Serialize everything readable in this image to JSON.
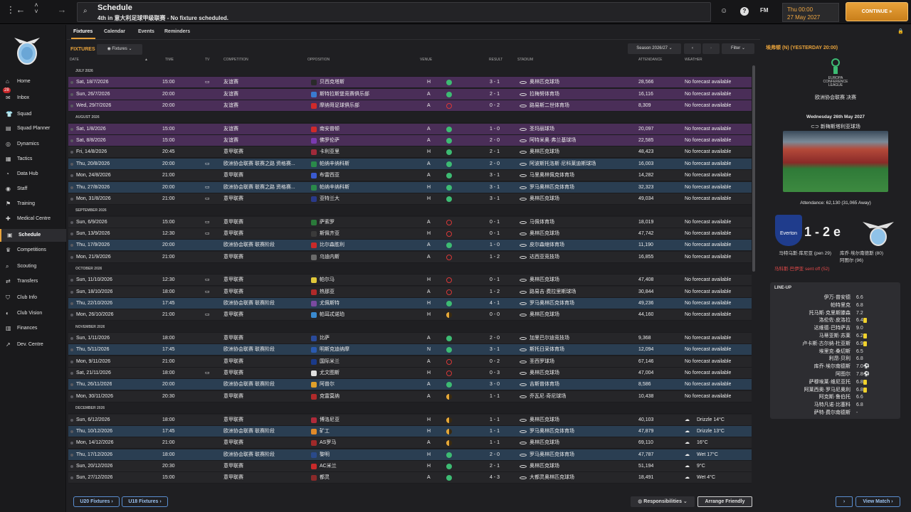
{
  "topbar": {
    "title": "Schedule",
    "subtitle": "4th in 意大利足球甲级联赛 - No fixture scheduled.",
    "date_time": "Thu 00:00",
    "date": "27 May 2027",
    "continue_label": "CONTINUE",
    "fm_label": "FM"
  },
  "sidebar": {
    "items": [
      {
        "label": "Home",
        "icon": "⌂"
      },
      {
        "label": "Inbox",
        "icon": "✉",
        "badge": "28"
      },
      {
        "label": "Squad",
        "icon": "👕"
      },
      {
        "label": "Squad Planner",
        "icon": "▤"
      },
      {
        "label": "Dynamics",
        "icon": "◎"
      },
      {
        "label": "Tactics",
        "icon": "▦"
      },
      {
        "label": "Data Hub",
        "icon": "◔"
      },
      {
        "label": "Staff",
        "icon": "◉"
      },
      {
        "label": "Training",
        "icon": "⚑"
      },
      {
        "label": "Medical Centre",
        "icon": "✚"
      },
      {
        "label": "Schedule",
        "icon": "▣"
      },
      {
        "label": "Competitions",
        "icon": "♛"
      },
      {
        "label": "Scouting",
        "icon": "⌕"
      },
      {
        "label": "Transfers",
        "icon": "⇄"
      },
      {
        "label": "Club Info",
        "icon": "⛉"
      },
      {
        "label": "Club Vision",
        "icon": "◐"
      },
      {
        "label": "Finances",
        "icon": "▥"
      },
      {
        "label": "Dev. Centre",
        "icon": "↗"
      }
    ]
  },
  "tabs": [
    "Fixtures",
    "Calendar",
    "Events",
    "Reminders"
  ],
  "fixtures_label": "FIXTURES",
  "fixtures_dropdown": "Fixtures",
  "season_label": "Season 2026/27",
  "filter_label": "Filter",
  "columns": {
    "date": "DATE",
    "time": "TIME",
    "tv": "TV",
    "competition": "COMPETITION",
    "opposition": "OPPOSITION",
    "venue": "VENUE",
    "result": "RESULT",
    "stadium": "STADIUM",
    "attendance": "ATTENDANCE",
    "weather": "WEATHER"
  },
  "rows": [
    {
      "month": "JULY 2026"
    },
    {
      "date": "Sat, 18/7/2026",
      "time": "15:00",
      "tv": true,
      "comp": "友谊赛",
      "opp": "贝西克塔斯",
      "venue": "H",
      "out": "win",
      "result": "3 - 1",
      "stadium": "奥林匹克球场",
      "att": "28,566",
      "weather": "No forecast available",
      "style": "purple",
      "crest": "#2a2a2a"
    },
    {
      "date": "Sun, 26/7/2026",
      "time": "20:00",
      "tv": false,
      "comp": "友谊赛",
      "opp": "斯特拉斯堡竞赛俱乐部",
      "venue": "A",
      "out": "win",
      "result": "2 - 1",
      "stadium": "拉梅努体育场",
      "att": "16,116",
      "weather": "No forecast available",
      "style": "purple",
      "crest": "#3a7ad0"
    },
    {
      "date": "Wed, 29/7/2026",
      "time": "20:00",
      "tv": false,
      "comp": "友谊赛",
      "opp": "摩纳哥足球俱乐部",
      "venue": "A",
      "out": "loss",
      "result": "0 - 2",
      "stadium": "路易斯二世体育场",
      "att": "8,309",
      "weather": "No forecast available",
      "style": "purple",
      "crest": "#d02a2a"
    },
    {
      "month": "AUGUST 2026"
    },
    {
      "date": "Sat, 1/8/2026",
      "time": "15:00",
      "tv": false,
      "comp": "友谊赛",
      "opp": "南安普顿",
      "venue": "A",
      "out": "win",
      "result": "1 - 0",
      "stadium": "圣玛丽球场",
      "att": "20,097",
      "weather": "No forecast available",
      "style": "purple",
      "crest": "#d02a2a"
    },
    {
      "date": "Sat, 8/8/2026",
      "time": "15:00",
      "tv": false,
      "comp": "友谊赛",
      "opp": "佛罗伦萨",
      "venue": "A",
      "out": "win",
      "result": "2 - 0",
      "stadium": "阿特米奥·弗兰基球场",
      "att": "22,585",
      "weather": "No forecast available",
      "style": "purple",
      "crest": "#7a3ab0"
    },
    {
      "date": "Fri, 14/8/2026",
      "time": "20:45",
      "tv": false,
      "comp": "意甲联赛",
      "opp": "卡利亚里",
      "venue": "H",
      "out": "win",
      "result": "2 - 1",
      "stadium": "奥林匹克球场",
      "att": "48,423",
      "weather": "No forecast available",
      "style": "plain",
      "crest": "#a02a3a"
    },
    {
      "date": "Thu, 20/8/2026",
      "time": "20:00",
      "tv": true,
      "comp": "欧洲协会联赛 联赛之路 资格赛...",
      "opp": "帕纳辛纳科斯",
      "venue": "A",
      "out": "win",
      "result": "2 - 0",
      "stadium": "阿波斯托洛斯·尼科莱迪斯球场",
      "att": "16,003",
      "weather": "No forecast available",
      "style": "blue",
      "crest": "#2a8a4a"
    },
    {
      "date": "Mon, 24/8/2026",
      "time": "21:00",
      "tv": false,
      "comp": "意甲联赛",
      "opp": "布雷西亚",
      "venue": "A",
      "out": "win",
      "result": "3 - 1",
      "stadium": "马里奥林佩克体育场",
      "att": "14,282",
      "weather": "No forecast available",
      "style": "plain",
      "crest": "#3a5ad0"
    },
    {
      "date": "Thu, 27/8/2026",
      "time": "20:00",
      "tv": true,
      "comp": "欧洲协会联赛 联赛之路 资格赛...",
      "opp": "帕纳辛纳科斯",
      "venue": "H",
      "out": "win",
      "result": "3 - 1",
      "stadium": "罗马奥林匹克体育场",
      "att": "32,323",
      "weather": "No forecast available",
      "style": "blue",
      "crest": "#2a8a4a"
    },
    {
      "date": "Mon, 31/8/2026",
      "time": "21:00",
      "tv": true,
      "comp": "意甲联赛",
      "opp": "亚特兰大",
      "venue": "H",
      "out": "win",
      "result": "3 - 1",
      "stadium": "奥林匹克球场",
      "att": "49,034",
      "weather": "No forecast available",
      "style": "plain",
      "crest": "#2a3a8a"
    },
    {
      "month": "SEPTEMBER 2026"
    },
    {
      "date": "Sun, 6/9/2026",
      "time": "15:00",
      "tv": true,
      "comp": "意甲联赛",
      "opp": "萨索罗",
      "venue": "A",
      "out": "loss",
      "result": "0 - 1",
      "stadium": "马佩体育场",
      "att": "18,019",
      "weather": "No forecast available",
      "style": "plain",
      "crest": "#2a7a3a"
    },
    {
      "date": "Sun, 13/9/2026",
      "time": "12:30",
      "tv": true,
      "comp": "意甲联赛",
      "opp": "斯佩齐亚",
      "venue": "H",
      "out": "loss",
      "result": "0 - 1",
      "stadium": "奥林匹克球场",
      "att": "47,742",
      "weather": "No forecast available",
      "style": "plain",
      "crest": "#3a3a3a"
    },
    {
      "date": "Thu, 17/9/2026",
      "time": "20:00",
      "tv": false,
      "comp": "欧洲协会联赛 联赛阶段",
      "opp": "比尔森胜利",
      "venue": "A",
      "out": "win",
      "result": "1 - 0",
      "stadium": "皮尔森缩体育场",
      "att": "11,190",
      "weather": "No forecast available",
      "style": "blue",
      "crest": "#c82a2a"
    },
    {
      "date": "Mon, 21/9/2026",
      "time": "21:00",
      "tv": false,
      "comp": "意甲联赛",
      "opp": "乌迪内斯",
      "venue": "A",
      "out": "loss",
      "result": "1 - 2",
      "stadium": "达西亚竞技场",
      "att": "16,855",
      "weather": "No forecast available",
      "style": "plain",
      "crest": "#6a6a6a"
    },
    {
      "month": "OCTOBER 2026"
    },
    {
      "date": "Sun, 11/10/2026",
      "time": "12:30",
      "tv": true,
      "comp": "意甲联赛",
      "opp": "帕尔马",
      "venue": "H",
      "out": "loss",
      "result": "0 - 1",
      "stadium": "奥林匹克球场",
      "att": "47,408",
      "weather": "No forecast available",
      "style": "plain",
      "crest": "#e0c83a"
    },
    {
      "date": "Sun, 18/10/2026",
      "time": "18:00",
      "tv": true,
      "comp": "意甲联赛",
      "opp": "热那亚",
      "venue": "A",
      "out": "loss",
      "result": "1 - 2",
      "stadium": "路易吉·费拉里斯球场",
      "att": "30,844",
      "weather": "No forecast available",
      "style": "plain",
      "crest": "#b02a2a"
    },
    {
      "date": "Thu, 22/10/2026",
      "time": "17:45",
      "tv": false,
      "comp": "欧洲协会联赛 联赛阶段",
      "opp": "尤佩斯特",
      "venue": "H",
      "out": "win",
      "result": "4 - 1",
      "stadium": "罗马奥林匹克体育场",
      "att": "49,236",
      "weather": "No forecast available",
      "style": "blue",
      "crest": "#7a4aa0"
    },
    {
      "date": "Mon, 26/10/2026",
      "time": "21:00",
      "tv": true,
      "comp": "意甲联赛",
      "opp": "帕耳忒诺珀",
      "venue": "H",
      "out": "draw",
      "result": "0 - 0",
      "stadium": "奥林匹克球场",
      "att": "44,160",
      "weather": "No forecast available",
      "style": "plain",
      "crest": "#3a8ad0"
    },
    {
      "month": "NOVEMBER 2026"
    },
    {
      "date": "Sun, 1/11/2026",
      "time": "18:00",
      "tv": false,
      "comp": "意甲联赛",
      "opp": "比萨",
      "venue": "A",
      "out": "win",
      "result": "2 - 0",
      "stadium": "加里巴尔迪竞技场",
      "att": "9,368",
      "weather": "No forecast available",
      "style": "plain",
      "crest": "#2a4a9a"
    },
    {
      "date": "Thu, 5/11/2026",
      "time": "17:45",
      "tv": false,
      "comp": "欧洲协会联赛 联赛阶段",
      "opp": "明斯克迪纳摩",
      "venue": "N",
      "out": "win",
      "result": "3 - 1",
      "stadium": "斯托日采体育场",
      "att": "12,094",
      "weather": "No forecast available",
      "style": "blue",
      "crest": "#2a5ab0"
    },
    {
      "date": "Mon, 9/11/2026",
      "time": "21:00",
      "tv": false,
      "comp": "意甲联赛",
      "opp": "国际米兰",
      "venue": "A",
      "out": "loss",
      "result": "0 - 2",
      "stadium": "圣西罗球场",
      "att": "67,146",
      "weather": "No forecast available",
      "style": "plain",
      "crest": "#1a3a8a"
    },
    {
      "date": "Sat, 21/11/2026",
      "time": "18:00",
      "tv": true,
      "comp": "意甲联赛",
      "opp": "尤文图斯",
      "venue": "H",
      "out": "loss",
      "result": "0 - 3",
      "stadium": "奥林匹克球场",
      "att": "47,004",
      "weather": "No forecast available",
      "style": "plain",
      "crest": "#e0e0e0"
    },
    {
      "date": "Thu, 26/11/2026",
      "time": "20:00",
      "tv": false,
      "comp": "欧洲协会联赛 联赛阶段",
      "opp": "阿普尔",
      "venue": "A",
      "out": "win",
      "result": "3 - 0",
      "stadium": "吉斯普体育场",
      "att": "8,586",
      "weather": "No forecast available",
      "style": "blue",
      "crest": "#e0a02a"
    },
    {
      "date": "Mon, 30/11/2026",
      "time": "20:30",
      "tv": false,
      "comp": "意甲联赛",
      "opp": "克雷莫纳",
      "venue": "A",
      "out": "draw",
      "result": "1 - 1",
      "stadium": "乔瓦尼·奇尼球场",
      "att": "10,438",
      "weather": "No forecast available",
      "style": "plain",
      "crest": "#b02a2a"
    },
    {
      "month": "DECEMBER 2026"
    },
    {
      "date": "Sun, 6/12/2026",
      "time": "18:00",
      "tv": false,
      "comp": "意甲联赛",
      "opp": "博洛尼亚",
      "venue": "H",
      "out": "draw",
      "result": "1 - 1",
      "stadium": "奥林匹克球场",
      "att": "40,103",
      "weather": "Drizzle 14°C",
      "style": "plain",
      "crest": "#b02a3a"
    },
    {
      "date": "Thu, 10/12/2026",
      "time": "17:45",
      "tv": false,
      "comp": "欧洲协会联赛 联赛阶段",
      "opp": "矿工",
      "venue": "H",
      "out": "draw",
      "result": "1 - 1",
      "stadium": "罗马奥林匹克体育场",
      "att": "47,879",
      "weather": "Drizzle 13°C",
      "style": "blue",
      "crest": "#e08a2a"
    },
    {
      "date": "Mon, 14/12/2026",
      "time": "21:00",
      "tv": false,
      "comp": "意甲联赛",
      "opp": "AS罗马",
      "venue": "A",
      "out": "draw",
      "result": "1 - 1",
      "stadium": "奥林匹克球场",
      "att": "69,110",
      "weather": "16°C",
      "style": "plain",
      "crest": "#a02a2a"
    },
    {
      "date": "Thu, 17/12/2026",
      "time": "18:00",
      "tv": false,
      "comp": "欧洲协会联赛 联赛阶段",
      "opp": "黎明",
      "venue": "H",
      "out": "win",
      "result": "2 - 0",
      "stadium": "罗马奥林匹克体育场",
      "att": "47,787",
      "weather": "Wet 17°C",
      "style": "blue",
      "crest": "#2a4a8a"
    },
    {
      "date": "Sun, 20/12/2026",
      "time": "20:30",
      "tv": false,
      "comp": "意甲联赛",
      "opp": "AC米兰",
      "venue": "H",
      "out": "win",
      "result": "2 - 1",
      "stadium": "奥林匹克球场",
      "att": "51,194",
      "weather": "9°C",
      "style": "plain",
      "crest": "#c82a2a"
    },
    {
      "date": "Sun, 27/12/2026",
      "time": "15:00",
      "tv": false,
      "comp": "意甲联赛",
      "opp": "都灵",
      "venue": "A",
      "out": "win",
      "result": "4 - 3",
      "stadium": "大都灵奥林匹克球场",
      "att": "18,491",
      "weather": "Wet 4°C",
      "style": "plain",
      "crest": "#8a2a2a"
    }
  ],
  "bottom": {
    "u20": "U20 Fixtures",
    "u18": "U18 Fixtures",
    "responsibilities": "Responsibilities",
    "arrange": "Arrange Friendly",
    "view_match": "View Match"
  },
  "panel": {
    "header": "埃弗顿 (N) (YESTERDAY 20:00)",
    "comp_logo_l1": "EUROPA",
    "comp_logo_l2": "CONFERENCE",
    "comp_logo_l3": "LEAGUE",
    "comp": "欧洲协会联赛 决赛",
    "date": "Wednesday 26th May 2027",
    "stadium": "新梅斯塔利亚球场",
    "attendance": "Attendance: 62,130 (31,065 Away)",
    "home_badge": "Everton",
    "score": "1 - 2 e",
    "home_scorer": "马特乌斯·库尼亚 (pen 29)",
    "home_red": "马科斯·巴伊亚 sent off (52)",
    "away_scorer1": "库乔·埃尔南德斯 (80)",
    "away_scorer2": "阿图尔 (96)",
    "lineup_title": "LINE-UP",
    "lineup": [
      {
        "name": "伊万·普安德",
        "rating": "6.6",
        "mark": ""
      },
      {
        "name": "帕特里克",
        "rating": "6.8",
        "mark": ""
      },
      {
        "name": "托马斯·克里斯滕森",
        "rating": "7.2",
        "mark": ""
      },
      {
        "name": "洛伦佐·皮洛拉",
        "rating": "6.4",
        "mark": "card"
      },
      {
        "name": "达维德·巴特萨吉",
        "rating": "9.0",
        "mark": ""
      },
      {
        "name": "马蒂亚斯·苏莱",
        "rating": "6.2",
        "mark": "card"
      },
      {
        "name": "卢卡斯·古尔纳·杜亚斯",
        "rating": "6.9",
        "mark": "card"
      },
      {
        "name": "埃里克·桑切斯",
        "rating": "6.5",
        "mark": ""
      },
      {
        "name": "利昂·贝利",
        "rating": "6.8",
        "mark": ""
      },
      {
        "name": "库乔·埃尔南德斯",
        "rating": "7.0",
        "mark": "gear"
      },
      {
        "name": "阿图尔",
        "rating": "7.8",
        "mark": "gear"
      },
      {
        "name": "萨穆埃莱·维尼亚托",
        "rating": "6.8",
        "mark": "card"
      },
      {
        "name": "阿莱西奥·罗马尼奥利",
        "rating": "6.8",
        "mark": "card"
      },
      {
        "name": "阿克斯·鲁伯托",
        "rating": "6.6",
        "mark": ""
      },
      {
        "name": "马特凡诺·比塞科",
        "rating": "6.8",
        "mark": ""
      },
      {
        "name": "萨特·费尔南德斯",
        "rating": "-",
        "mark": ""
      }
    ]
  }
}
